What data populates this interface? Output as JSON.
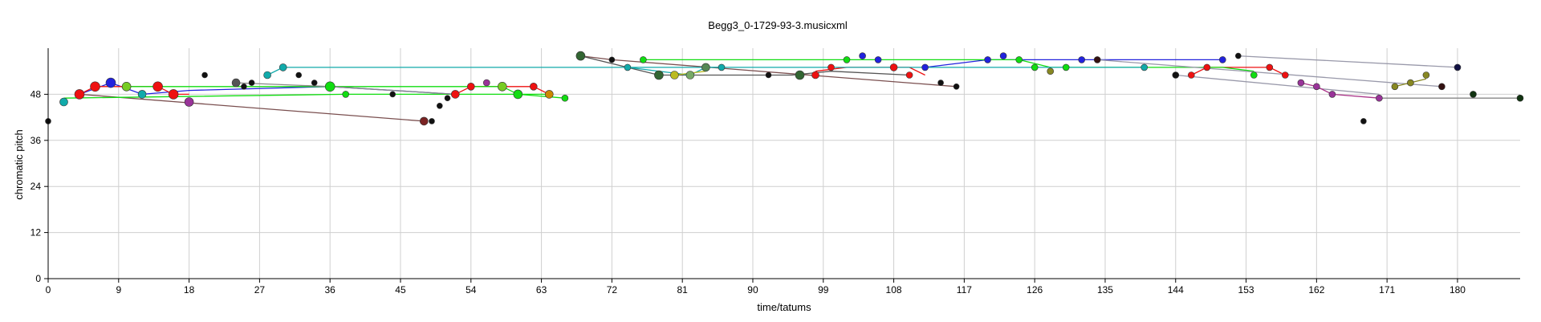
{
  "chart_data": {
    "type": "scatter",
    "title": "Begg3_0-1729-93-3.musicxml",
    "xlabel": "time/tatums",
    "ylabel": "chromatic pitch",
    "xlim": [
      0,
      188
    ],
    "ylim": [
      0,
      60
    ],
    "xticks": [
      0,
      9,
      18,
      27,
      36,
      45,
      54,
      63,
      72,
      81,
      90,
      99,
      108,
      117,
      126,
      135,
      144,
      153,
      162,
      171,
      180
    ],
    "yticks": [
      0,
      12,
      24,
      36,
      48
    ],
    "grid": true,
    "legend": "none",
    "series": [
      {
        "color": "#7a4f4f",
        "points": [
          [
            4,
            48
          ],
          [
            48,
            41
          ]
        ]
      },
      {
        "color": "#7a4f4f",
        "points": [
          [
            68,
            58
          ],
          [
            72,
            57
          ],
          [
            116,
            50
          ]
        ]
      },
      {
        "color": "#555555",
        "points": [
          [
            68,
            58
          ],
          [
            78,
            53
          ],
          [
            95,
            53
          ],
          [
            100,
            54
          ],
          [
            110,
            53
          ]
        ]
      },
      {
        "color": "#2222dd",
        "points": [
          [
            4,
            48
          ],
          [
            8,
            51
          ],
          [
            12,
            48
          ],
          [
            18,
            49
          ],
          [
            36,
            50
          ],
          [
            52,
            48
          ]
        ]
      },
      {
        "color": "#2222dd",
        "points": [
          [
            112,
            55
          ],
          [
            120,
            57
          ],
          [
            132,
            57
          ],
          [
            150,
            57
          ]
        ]
      },
      {
        "color": "#ee1111",
        "points": [
          [
            4,
            48
          ],
          [
            6,
            50
          ],
          [
            14,
            50
          ],
          [
            16,
            48
          ],
          [
            18,
            48
          ]
        ]
      },
      {
        "color": "#ee1111",
        "points": [
          [
            52,
            48
          ],
          [
            54,
            50
          ],
          [
            62,
            50
          ],
          [
            64,
            48
          ]
        ]
      },
      {
        "color": "#ee1111",
        "points": [
          [
            98,
            54
          ],
          [
            102,
            55
          ],
          [
            110,
            55
          ],
          [
            112,
            53
          ]
        ]
      },
      {
        "color": "#ee1111",
        "points": [
          [
            146,
            53
          ],
          [
            148,
            55
          ],
          [
            156,
            55
          ],
          [
            158,
            53
          ]
        ]
      },
      {
        "color": "#11dd11",
        "points": [
          [
            10,
            50
          ],
          [
            36,
            50
          ],
          [
            58,
            50
          ],
          [
            60,
            48
          ],
          [
            66,
            47
          ]
        ]
      },
      {
        "color": "#11dd11",
        "points": [
          [
            2,
            47
          ],
          [
            38,
            48
          ],
          [
            60,
            48
          ],
          [
            64,
            48
          ]
        ]
      },
      {
        "color": "#11dd11",
        "points": [
          [
            76,
            57
          ],
          [
            102,
            57
          ],
          [
            124,
            57
          ],
          [
            128,
            55
          ],
          [
            130,
            55
          ],
          [
            150,
            55
          ],
          [
            154,
            54
          ]
        ]
      },
      {
        "color": "#11aaaa",
        "points": [
          [
            28,
            53
          ],
          [
            30,
            55
          ],
          [
            125,
            55
          ],
          [
            140,
            55
          ]
        ]
      },
      {
        "color": "#11aaaa",
        "points": [
          [
            74,
            55
          ],
          [
            82,
            53
          ],
          [
            84,
            55
          ],
          [
            86,
            55
          ]
        ]
      },
      {
        "color": "#888888",
        "points": [
          [
            24,
            51
          ],
          [
            36,
            50
          ],
          [
            52,
            48
          ]
        ]
      },
      {
        "color": "#9999aa",
        "points": [
          [
            152,
            58
          ],
          [
            180,
            55
          ]
        ]
      },
      {
        "color": "#9999aa",
        "points": [
          [
            134,
            57
          ],
          [
            178,
            50
          ]
        ]
      },
      {
        "color": "#9999aa",
        "points": [
          [
            144,
            53
          ],
          [
            170,
            48
          ]
        ]
      },
      {
        "color": "#888888",
        "points": [
          [
            170,
            47
          ],
          [
            188,
            47
          ]
        ]
      },
      {
        "color": "#bbbb22",
        "points": [
          [
            80,
            53
          ],
          [
            84,
            54
          ]
        ]
      },
      {
        "color": "#888822",
        "points": [
          [
            172,
            50
          ],
          [
            176,
            52
          ]
        ]
      },
      {
        "color": "#aa3388",
        "points": [
          [
            160,
            51
          ],
          [
            162,
            50
          ],
          [
            164,
            48
          ],
          [
            170,
            47
          ]
        ]
      }
    ],
    "markers": [
      {
        "x": 0,
        "y": 41,
        "color": "#111111",
        "r": 3.5
      },
      {
        "x": 2,
        "y": 46,
        "color": "#11aaaa",
        "r": 5
      },
      {
        "x": 4,
        "y": 48,
        "color": "#ee1111",
        "r": 6
      },
      {
        "x": 6,
        "y": 50,
        "color": "#ee1111",
        "r": 6
      },
      {
        "x": 8,
        "y": 51,
        "color": "#2222dd",
        "r": 6
      },
      {
        "x": 10,
        "y": 50,
        "color": "#77cc22",
        "r": 5.5
      },
      {
        "x": 12,
        "y": 48,
        "color": "#11aaaa",
        "r": 5
      },
      {
        "x": 14,
        "y": 50,
        "color": "#ee1111",
        "r": 6
      },
      {
        "x": 16,
        "y": 48,
        "color": "#ee1111",
        "r": 6
      },
      {
        "x": 18,
        "y": 46,
        "color": "#993399",
        "r": 5.5
      },
      {
        "x": 20,
        "y": 53,
        "color": "#111111",
        "r": 3.5
      },
      {
        "x": 24,
        "y": 51,
        "color": "#555555",
        "r": 5
      },
      {
        "x": 25,
        "y": 50,
        "color": "#111111",
        "r": 3.5
      },
      {
        "x": 26,
        "y": 51,
        "color": "#111111",
        "r": 3.5
      },
      {
        "x": 28,
        "y": 53,
        "color": "#11aaaa",
        "r": 4.5
      },
      {
        "x": 30,
        "y": 55,
        "color": "#11aaaa",
        "r": 4.5
      },
      {
        "x": 32,
        "y": 53,
        "color": "#111111",
        "r": 3.5
      },
      {
        "x": 34,
        "y": 51,
        "color": "#111111",
        "r": 3.5
      },
      {
        "x": 36,
        "y": 50,
        "color": "#11dd11",
        "r": 6
      },
      {
        "x": 38,
        "y": 48,
        "color": "#11dd11",
        "r": 4
      },
      {
        "x": 44,
        "y": 48,
        "color": "#111111",
        "r": 3.5
      },
      {
        "x": 48,
        "y": 41,
        "color": "#7a2222",
        "r": 5
      },
      {
        "x": 49,
        "y": 41,
        "color": "#111111",
        "r": 3.5
      },
      {
        "x": 50,
        "y": 45,
        "color": "#111111",
        "r": 3.5
      },
      {
        "x": 51,
        "y": 47,
        "color": "#111111",
        "r": 3.5
      },
      {
        "x": 52,
        "y": 48,
        "color": "#ee1111",
        "r": 5
      },
      {
        "x": 54,
        "y": 50,
        "color": "#ee1111",
        "r": 4.5
      },
      {
        "x": 56,
        "y": 51,
        "color": "#993399",
        "r": 4
      },
      {
        "x": 58,
        "y": 50,
        "color": "#77cc22",
        "r": 5.5
      },
      {
        "x": 60,
        "y": 48,
        "color": "#11dd11",
        "r": 5.5
      },
      {
        "x": 62,
        "y": 50,
        "color": "#ee1111",
        "r": 4.5
      },
      {
        "x": 64,
        "y": 48,
        "color": "#cc8800",
        "r": 5
      },
      {
        "x": 66,
        "y": 47,
        "color": "#11dd11",
        "r": 4
      },
      {
        "x": 68,
        "y": 58,
        "color": "#336633",
        "r": 5.5
      },
      {
        "x": 72,
        "y": 57,
        "color": "#111111",
        "r": 3.5
      },
      {
        "x": 74,
        "y": 55,
        "color": "#11aaaa",
        "r": 4
      },
      {
        "x": 76,
        "y": 57,
        "color": "#11dd11",
        "r": 4
      },
      {
        "x": 78,
        "y": 53,
        "color": "#336633",
        "r": 5.5
      },
      {
        "x": 80,
        "y": 53,
        "color": "#bbbb22",
        "r": 5
      },
      {
        "x": 82,
        "y": 53,
        "color": "#77aa66",
        "r": 5
      },
      {
        "x": 84,
        "y": 55,
        "color": "#558855",
        "r": 5
      },
      {
        "x": 86,
        "y": 55,
        "color": "#11aaaa",
        "r": 4
      },
      {
        "x": 92,
        "y": 53,
        "color": "#111111",
        "r": 3.5
      },
      {
        "x": 96,
        "y": 53,
        "color": "#336633",
        "r": 5.5
      },
      {
        "x": 98,
        "y": 53,
        "color": "#ee1111",
        "r": 4.5
      },
      {
        "x": 100,
        "y": 55,
        "color": "#ee1111",
        "r": 4
      },
      {
        "x": 102,
        "y": 57,
        "color": "#11dd11",
        "r": 4
      },
      {
        "x": 104,
        "y": 58,
        "color": "#2222dd",
        "r": 4
      },
      {
        "x": 106,
        "y": 57,
        "color": "#2222dd",
        "r": 4
      },
      {
        "x": 108,
        "y": 55,
        "color": "#ee1111",
        "r": 4.5
      },
      {
        "x": 110,
        "y": 53,
        "color": "#ee1111",
        "r": 4
      },
      {
        "x": 112,
        "y": 55,
        "color": "#2222dd",
        "r": 4
      },
      {
        "x": 114,
        "y": 51,
        "color": "#111111",
        "r": 3.5
      },
      {
        "x": 116,
        "y": 50,
        "color": "#111111",
        "r": 3.5
      },
      {
        "x": 120,
        "y": 57,
        "color": "#2222dd",
        "r": 4
      },
      {
        "x": 122,
        "y": 58,
        "color": "#2222dd",
        "r": 4
      },
      {
        "x": 124,
        "y": 57,
        "color": "#11dd11",
        "r": 4
      },
      {
        "x": 126,
        "y": 55,
        "color": "#11dd11",
        "r": 4
      },
      {
        "x": 128,
        "y": 54,
        "color": "#888822",
        "r": 4
      },
      {
        "x": 130,
        "y": 55,
        "color": "#11dd11",
        "r": 4
      },
      {
        "x": 132,
        "y": 57,
        "color": "#2222dd",
        "r": 4
      },
      {
        "x": 134,
        "y": 57,
        "color": "#331111",
        "r": 4
      },
      {
        "x": 140,
        "y": 55,
        "color": "#11aaaa",
        "r": 4
      },
      {
        "x": 144,
        "y": 53,
        "color": "#111111",
        "r": 4
      },
      {
        "x": 146,
        "y": 53,
        "color": "#ee1111",
        "r": 4
      },
      {
        "x": 148,
        "y": 55,
        "color": "#ee1111",
        "r": 4
      },
      {
        "x": 150,
        "y": 57,
        "color": "#2222dd",
        "r": 4
      },
      {
        "x": 152,
        "y": 58,
        "color": "#111111",
        "r": 3.5
      },
      {
        "x": 154,
        "y": 53,
        "color": "#11dd11",
        "r": 4
      },
      {
        "x": 156,
        "y": 55,
        "color": "#ee1111",
        "r": 4
      },
      {
        "x": 158,
        "y": 53,
        "color": "#ee1111",
        "r": 4
      },
      {
        "x": 160,
        "y": 51,
        "color": "#993399",
        "r": 4
      },
      {
        "x": 162,
        "y": 50,
        "color": "#993399",
        "r": 4
      },
      {
        "x": 164,
        "y": 48,
        "color": "#993399",
        "r": 4
      },
      {
        "x": 168,
        "y": 41,
        "color": "#111111",
        "r": 3.5
      },
      {
        "x": 170,
        "y": 47,
        "color": "#993399",
        "r": 4
      },
      {
        "x": 172,
        "y": 50,
        "color": "#888822",
        "r": 4
      },
      {
        "x": 174,
        "y": 51,
        "color": "#888822",
        "r": 4
      },
      {
        "x": 176,
        "y": 53,
        "color": "#888822",
        "r": 4
      },
      {
        "x": 178,
        "y": 50,
        "color": "#331111",
        "r": 4
      },
      {
        "x": 180,
        "y": 55,
        "color": "#111144",
        "r": 4
      },
      {
        "x": 182,
        "y": 48,
        "color": "#113311",
        "r": 4
      },
      {
        "x": 188,
        "y": 47,
        "color": "#113311",
        "r": 4
      }
    ]
  }
}
